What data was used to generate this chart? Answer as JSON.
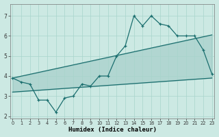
{
  "x_values": [
    0,
    1,
    2,
    3,
    4,
    5,
    6,
    7,
    8,
    9,
    10,
    11,
    12,
    13,
    14,
    15,
    16,
    17,
    18,
    19,
    20,
    21,
    22,
    23
  ],
  "y_main": [
    3.9,
    3.7,
    3.6,
    2.8,
    2.8,
    2.2,
    2.9,
    3.0,
    3.6,
    3.5,
    4.0,
    4.0,
    5.0,
    5.5,
    7.0,
    6.5,
    7.0,
    6.6,
    6.5,
    6.0,
    6.0,
    6.0,
    5.3,
    4.1
  ],
  "upper_line": [
    [
      0,
      3.9
    ],
    [
      23,
      6.05
    ]
  ],
  "lower_line": [
    [
      0,
      3.2
    ],
    [
      23,
      3.9
    ]
  ],
  "bg_color": "#cce9e3",
  "line_color": "#1a6e6e",
  "grid_color": "#a8d4cc",
  "xlabel": "Humidex (Indice chaleur)",
  "ylim": [
    1.9,
    7.6
  ],
  "xlim": [
    -0.3,
    23.3
  ],
  "yticks": [
    2,
    3,
    4,
    5,
    6,
    7
  ],
  "xticks": [
    0,
    1,
    2,
    3,
    4,
    5,
    6,
    7,
    8,
    9,
    10,
    11,
    12,
    13,
    14,
    15,
    16,
    17,
    18,
    19,
    20,
    21,
    22,
    23
  ]
}
